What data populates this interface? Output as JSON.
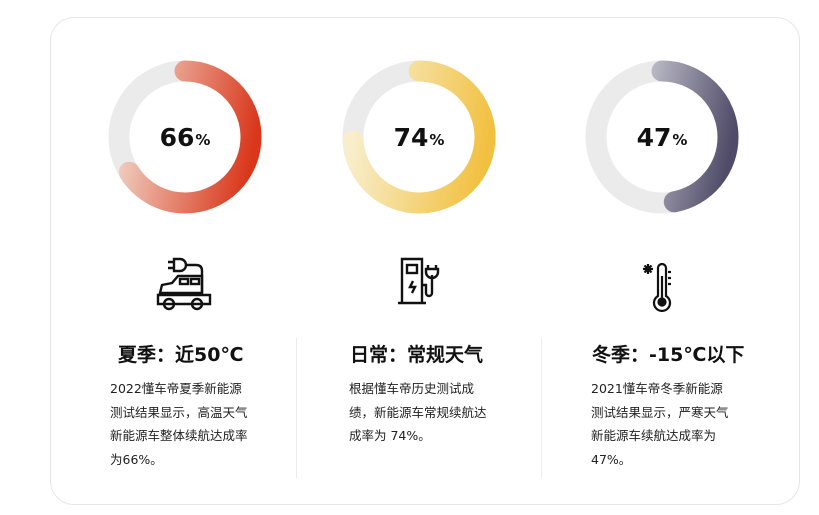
{
  "cards": [
    {
      "percent": "66",
      "unit": "%",
      "value": 0.66,
      "icon": "electric-car-plug-icon",
      "title": "夏季：近50℃",
      "desc": "2022懂车帝夏季新能源测试结果显示，高温天气新能源车整体续航达成率为66%。",
      "colors": [
        "#f0d2c4",
        "#d9361a"
      ]
    },
    {
      "percent": "74",
      "unit": "%",
      "value": 0.74,
      "icon": "charging-station-icon",
      "title": "日常：常规天气",
      "desc": "根据懂车帝历史测试成绩，新能源车常规续航达成率为 74%。",
      "colors": [
        "#f8eecb",
        "#f1c03f"
      ]
    },
    {
      "percent": "47",
      "unit": "%",
      "value": 0.47,
      "icon": "cold-thermometer-icon",
      "title": "冬季：-15℃以下",
      "desc": "2021懂车帝冬季新能源测试结果显示，严寒天气新能源车续航达成率为47%。",
      "colors": [
        "#e9e9ee",
        "#4f4b68"
      ]
    }
  ],
  "track_color": "#ebebeb"
}
